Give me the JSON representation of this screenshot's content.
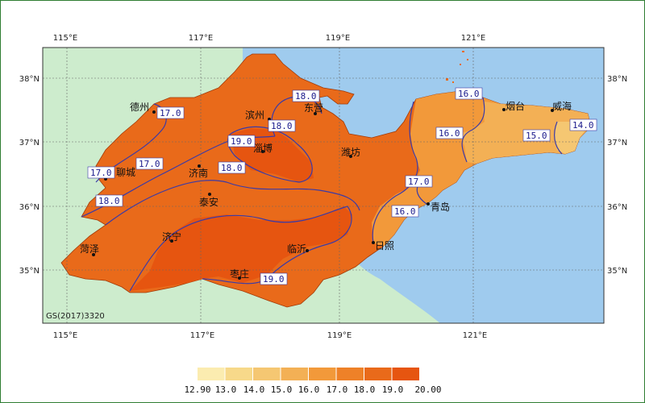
{
  "lon_ticks": [
    "115°E",
    "117°E",
    "119°E",
    "121°E"
  ],
  "lat_ticks": [
    "38°N",
    "37°N",
    "36°N",
    "35°N"
  ],
  "cities": [
    {
      "name": "德州"
    },
    {
      "name": "滨州"
    },
    {
      "name": "东营"
    },
    {
      "name": "烟台"
    },
    {
      "name": "威海"
    },
    {
      "name": "淄博"
    },
    {
      "name": "潍坊"
    },
    {
      "name": "聊城"
    },
    {
      "name": "济南"
    },
    {
      "name": "泰安"
    },
    {
      "name": "青岛"
    },
    {
      "name": "菏泽"
    },
    {
      "name": "济宁"
    },
    {
      "name": "临沂"
    },
    {
      "name": "日照"
    },
    {
      "name": "枣庄"
    }
  ],
  "isoline_labels": [
    "17.0",
    "18.0",
    "18.0",
    "19.0",
    "18.0",
    "17.0",
    "17.0",
    "18.0",
    "16.0",
    "16.0",
    "15.0",
    "14.0",
    "17.0",
    "16.0",
    "19.0"
  ],
  "map_code": "GS(2017)3320",
  "legend": {
    "labels": [
      "12.90",
      "13.0",
      "14.0",
      "15.0",
      "16.0",
      "17.0",
      "18.0",
      "19.0",
      "20.00"
    ],
    "colors": [
      "#fbecb0",
      "#f7d98a",
      "#f5c772",
      "#f3b055",
      "#f2993a",
      "#ee8128",
      "#e96a1a",
      "#e65510"
    ]
  },
  "colors": {
    "land": "#cdeccd",
    "sea": "#9fcbee",
    "iso_line": "#3a3aa8",
    "frame": "#2e7d32"
  }
}
